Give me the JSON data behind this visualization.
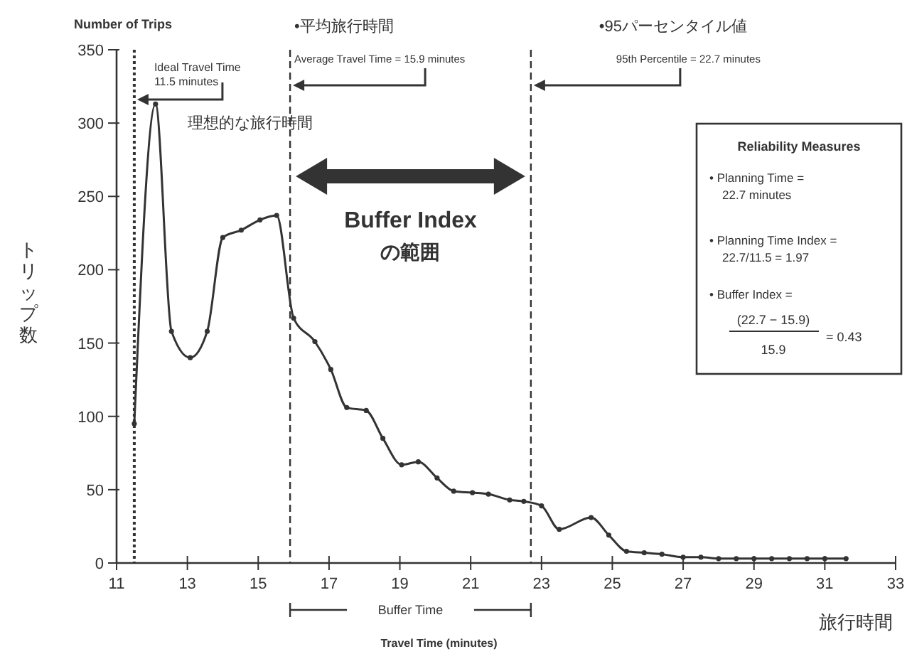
{
  "chart_data": {
    "type": "line",
    "ylabel": "トリップ数",
    "xlabel": "旅行時間",
    "x": [
      11.5,
      12.1,
      12.55,
      13.08,
      13.56,
      14.0,
      14.52,
      15.05,
      15.52,
      16.0,
      16.6,
      17.05,
      17.5,
      18.05,
      18.52,
      19.05,
      19.52,
      20.05,
      20.52,
      21.05,
      21.5,
      22.1,
      22.5,
      23.0,
      23.5,
      24.4,
      24.9,
      25.4,
      25.9,
      26.4,
      27.0,
      27.5,
      28.0,
      28.5,
      29.0,
      29.5,
      30.0,
      30.5,
      31.0,
      31.6
    ],
    "series": [
      {
        "color": "#333333",
        "values": [
          95,
          313,
          158,
          140,
          158,
          222,
          227,
          234,
          237,
          167,
          151,
          132,
          106,
          104,
          85,
          67,
          69,
          58,
          49,
          48,
          47,
          43,
          42,
          39,
          23,
          31,
          19,
          8,
          7,
          6,
          4,
          4,
          3,
          3,
          3,
          3,
          3,
          3,
          3,
          3
        ]
      }
    ],
    "xlim": [
      11,
      33
    ],
    "ylim": [
      0,
      350
    ],
    "xticks": [
      11,
      13,
      15,
      17,
      19,
      21,
      23,
      25,
      27,
      29,
      31,
      33
    ],
    "yticks": [
      0,
      50,
      100,
      150,
      200,
      250,
      300,
      350
    ],
    "marker": "circle",
    "line_style": "solid",
    "ref_lines": [
      {
        "axis": "x",
        "value": 11.5,
        "label": "Ideal Travel Time 11.5 minutes",
        "line_style": "dotted",
        "color": "#333333"
      },
      {
        "axis": "x",
        "value": 15.9,
        "label": "Average Travel Time = 15.9 minutes",
        "line_style": "dashed",
        "color": "#333333"
      },
      {
        "axis": "x",
        "value": 22.7,
        "label": "95th Percentile = 22.7 minutes",
        "line_style": "dashed",
        "color": "#333333"
      }
    ],
    "annotations": [
      "Number of Trips",
      "•平均旅行時間",
      "•95パーセンタイル値",
      "理想的な旅行時間",
      "Buffer Index",
      "の範囲",
      "Buffer Time",
      "Travel Time (minutes)",
      "Reliability Measures",
      "• Planning Time = 22.7 minutes",
      "• Planning Time Index = 22.7/11.5 = 1.97",
      "• Buffer Index =",
      "(22.7 − 15.9)",
      "15.9",
      "= 0.43"
    ]
  }
}
